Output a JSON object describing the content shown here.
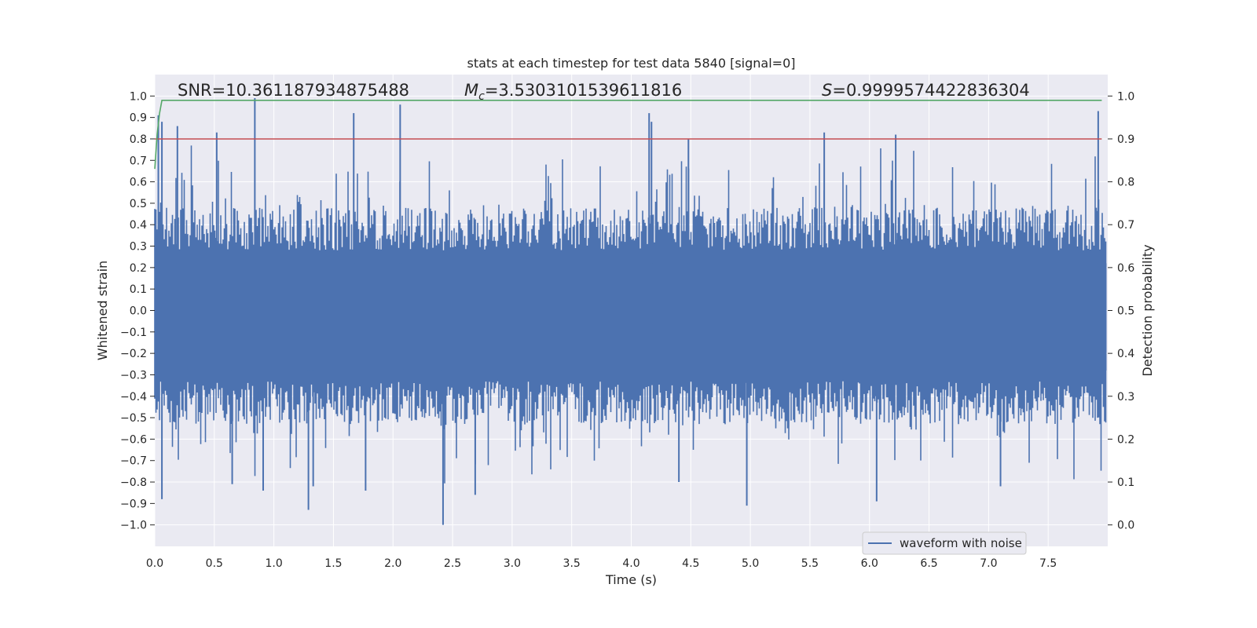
{
  "chart_data": {
    "type": "line",
    "title": "stats at each timestep for test data 5840 [signal=0]",
    "xlabel": "Time (s)",
    "ylabel": "Whitened strain",
    "ylabel_right": "Detection probability",
    "xlim": [
      0.0,
      8.0
    ],
    "ylim": [
      -1.1,
      1.1
    ],
    "ylim_right": [
      -0.05,
      1.05
    ],
    "x_ticks": [
      0.0,
      0.5,
      1.0,
      1.5,
      2.0,
      2.5,
      3.0,
      3.5,
      4.0,
      4.5,
      5.0,
      5.5,
      6.0,
      6.5,
      7.0,
      7.5
    ],
    "x_tick_labels": [
      "0.0",
      "0.5",
      "1.0",
      "1.5",
      "2.0",
      "2.5",
      "3.0",
      "3.5",
      "4.0",
      "4.5",
      "5.0",
      "5.5",
      "6.0",
      "6.5",
      "7.0",
      "7.5"
    ],
    "y_ticks": [
      -1.0,
      -0.9,
      -0.8,
      -0.7,
      -0.6,
      -0.5,
      -0.4,
      -0.3,
      -0.2,
      -0.1,
      0.0,
      0.1,
      0.2,
      0.3,
      0.4,
      0.5,
      0.6,
      0.7,
      0.8,
      0.9,
      1.0
    ],
    "y_tick_labels": [
      "−1.0",
      "−0.9",
      "−0.8",
      "−0.7",
      "−0.6",
      "−0.5",
      "−0.4",
      "−0.3",
      "−0.2",
      "−0.1",
      "0.0",
      "0.1",
      "0.2",
      "0.3",
      "0.4",
      "0.5",
      "0.6",
      "0.7",
      "0.8",
      "0.9",
      "1.0"
    ],
    "y_right_ticks": [
      0.0,
      0.1,
      0.2,
      0.3,
      0.4,
      0.5,
      0.6,
      0.7,
      0.8,
      0.9,
      1.0
    ],
    "y_right_tick_labels": [
      "0.0",
      "0.1",
      "0.2",
      "0.3",
      "0.4",
      "0.5",
      "0.6",
      "0.7",
      "0.8",
      "0.9",
      "1.0"
    ],
    "grid": true,
    "legend": {
      "position": "lower-right",
      "entries": [
        "waveform with noise"
      ]
    },
    "annotations": {
      "snr": "SNR=10.361187934875488",
      "mc_symbol": "M",
      "mc_subscript": "c",
      "mc_value": "=3.5303101539611816",
      "s_symbol": "S",
      "s_value": "=0.9999574422836304"
    },
    "series": [
      {
        "name": "waveform with noise",
        "axis": "left",
        "color": "#4c72b0",
        "kind": "noise-envelope",
        "x_range": [
          0.0,
          7.99
        ],
        "typical_upper": 0.4,
        "typical_lower": -0.45,
        "peaks": [
          {
            "x": 0.03,
            "y": 0.91
          },
          {
            "x": 0.06,
            "y": 0.88
          },
          {
            "x": 0.19,
            "y": 0.86
          },
          {
            "x": 0.52,
            "y": 0.83
          },
          {
            "x": 0.84,
            "y": 0.99
          },
          {
            "x": 1.67,
            "y": 0.92
          },
          {
            "x": 2.06,
            "y": 0.96
          },
          {
            "x": 4.15,
            "y": 0.92
          },
          {
            "x": 4.17,
            "y": 0.88
          },
          {
            "x": 4.48,
            "y": 0.8
          },
          {
            "x": 5.62,
            "y": 0.83
          },
          {
            "x": 6.22,
            "y": 0.82
          },
          {
            "x": 7.92,
            "y": 0.93
          }
        ],
        "troughs": [
          {
            "x": 0.06,
            "y": -0.88
          },
          {
            "x": 0.65,
            "y": -0.81
          },
          {
            "x": 0.91,
            "y": -0.84
          },
          {
            "x": 1.29,
            "y": -0.93
          },
          {
            "x": 1.33,
            "y": -0.82
          },
          {
            "x": 1.77,
            "y": -0.84
          },
          {
            "x": 2.42,
            "y": -1.0
          },
          {
            "x": 2.69,
            "y": -0.86
          },
          {
            "x": 4.4,
            "y": -0.8
          },
          {
            "x": 4.97,
            "y": -0.91
          },
          {
            "x": 6.06,
            "y": -0.89
          },
          {
            "x": 7.1,
            "y": -0.82
          }
        ]
      },
      {
        "name": "detection probability",
        "axis": "right",
        "color": "#55a868",
        "x": [
          0.0,
          0.02,
          0.04,
          0.06,
          0.08,
          7.95
        ],
        "values": [
          0.83,
          0.91,
          0.96,
          0.99,
          0.99,
          0.99
        ]
      },
      {
        "name": "threshold",
        "axis": "right",
        "color": "#c44e52",
        "x": [
          0.0,
          7.95
        ],
        "values": [
          0.9,
          0.9
        ]
      }
    ],
    "colors": {
      "plot_background": "#eaeaf2",
      "grid": "#ffffff",
      "text": "#262626"
    }
  }
}
